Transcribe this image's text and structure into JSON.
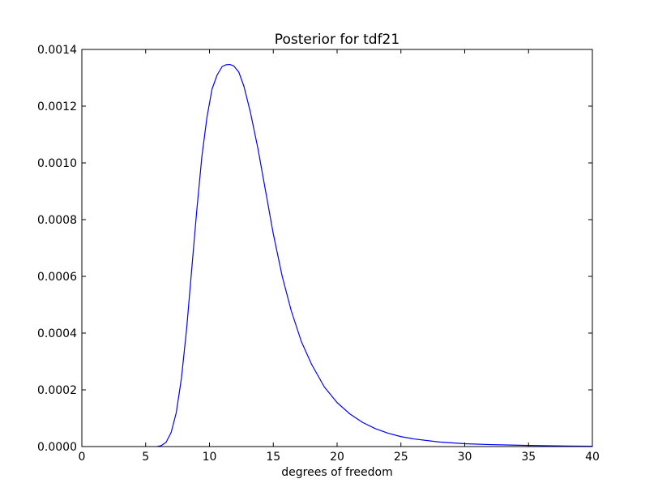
{
  "chart_data": {
    "type": "line",
    "title": "Posterior for tdf21",
    "xlabel": "degrees of freedom",
    "ylabel": "",
    "xlim": [
      0,
      40
    ],
    "ylim": [
      0,
      0.0014
    ],
    "x_ticks": [
      0,
      5,
      10,
      15,
      20,
      25,
      30,
      35,
      40
    ],
    "y_ticks": [
      0.0,
      0.0002,
      0.0004,
      0.0006,
      0.0008,
      0.001,
      0.0012,
      0.0014
    ],
    "x_tick_labels": [
      "0",
      "5",
      "10",
      "15",
      "20",
      "25",
      "30",
      "35",
      "40"
    ],
    "y_tick_labels": [
      "0.0000",
      "0.0002",
      "0.0004",
      "0.0006",
      "0.0008",
      "0.0010",
      "0.0012",
      "0.0014"
    ],
    "grid": false,
    "legend": "none",
    "line_color": "#0000ff",
    "series": [
      {
        "x": [
          5.9,
          6.2,
          6.6,
          7.0,
          7.4,
          7.8,
          8.2,
          8.6,
          9.0,
          9.4,
          9.8,
          10.2,
          10.6,
          11.0,
          11.3,
          11.6,
          11.9,
          12.3,
          12.7,
          13.2,
          13.8,
          14.4,
          15.0,
          15.7,
          16.4,
          17.2,
          18.0,
          19.0,
          20.0,
          21.0,
          22.0,
          23.0,
          24.0,
          25.0,
          26.0,
          28.0,
          30.0,
          32.0,
          35.0,
          38.0,
          40.0
        ],
        "y": [
          0.0,
          3e-06,
          1.5e-05,
          5e-05,
          0.00012,
          0.00024,
          0.00041,
          0.00062,
          0.00083,
          0.00102,
          0.00116,
          0.00126,
          0.00131,
          0.00134,
          0.001346,
          0.001347,
          0.001342,
          0.00132,
          0.00127,
          0.00118,
          0.00105,
          0.0009,
          0.00075,
          0.0006,
          0.00048,
          0.00037,
          0.00029,
          0.00021,
          0.000155,
          0.000115,
          8.5e-05,
          6.3e-05,
          4.7e-05,
          3.5e-05,
          2.7e-05,
          1.6e-05,
          1e-05,
          7e-06,
          4e-06,
          2e-06,
          1e-06
        ]
      }
    ]
  }
}
